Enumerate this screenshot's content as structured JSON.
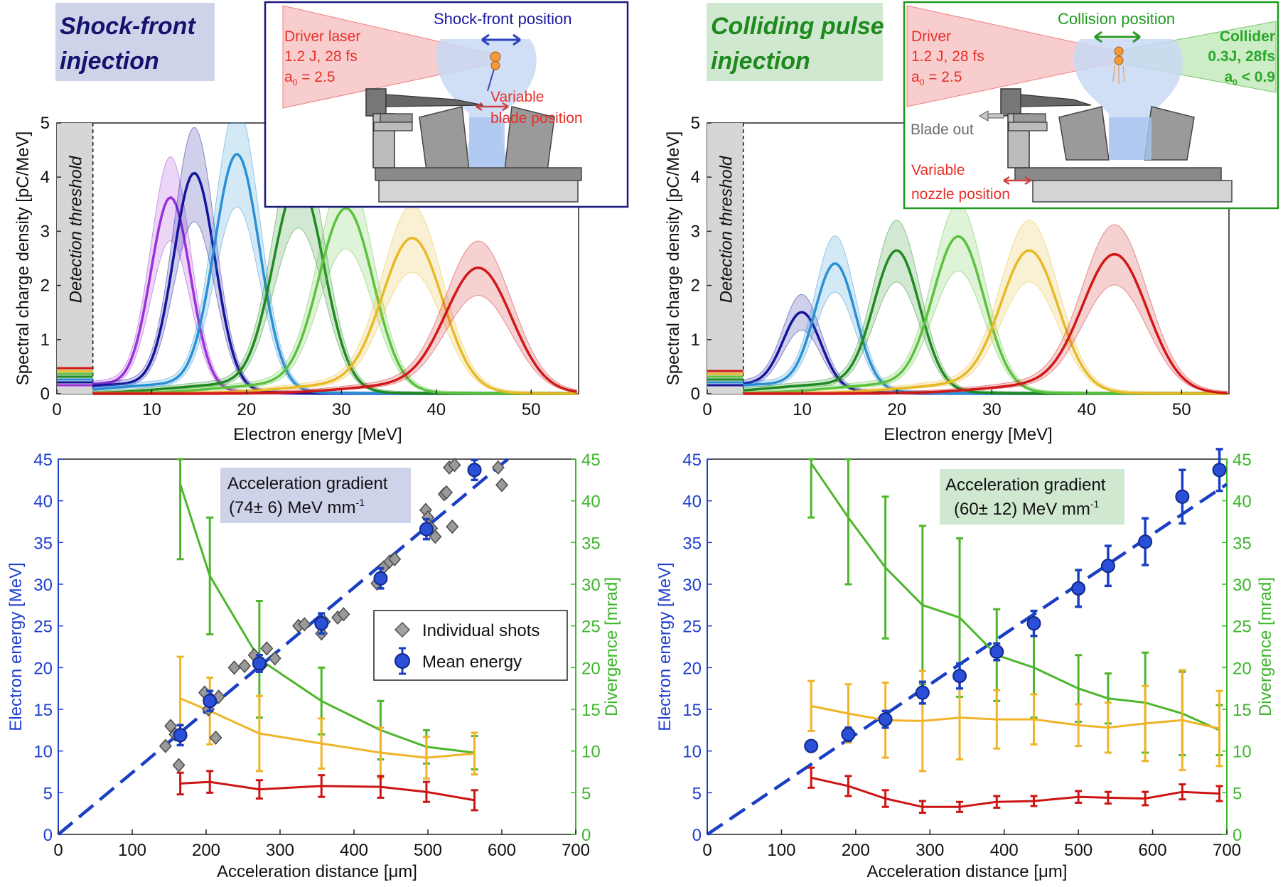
{
  "colors": {
    "axis_blue": "#1f3fd0",
    "axis_green": "#3cb62a",
    "mean_blue": "#1a3fc4",
    "driver_red": "#e8302a",
    "shock_navy": "#1a1a7a",
    "collide_green": "#1e9a1e",
    "energy_series": [
      "#9b30d9",
      "#14149c",
      "#2a8fd4",
      "#1f8a1f",
      "#5cc23c",
      "#e8b926",
      "#d01818"
    ]
  },
  "panels": {
    "shock": {
      "title_line1": "Shock-front",
      "title_line2": "injection",
      "title_bg": "#cfd3ea",
      "inset": {
        "driver_line1": "Driver laser",
        "driver_line2": "1.2 J, 28 fs",
        "driver_line3": "a",
        "driver_sub": "0",
        "driver_line3_rest": " = 2.5",
        "front_label": "Shock-front position",
        "blade_line1": "Variable",
        "blade_line2": "blade position"
      },
      "chart_data": {
        "type": "line",
        "title": "",
        "xlabel": "Electron energy [MeV]",
        "ylabel": "Spectral charge density [pC/MeV]",
        "xlim": [
          0,
          55
        ],
        "ylim": [
          0,
          5
        ],
        "xticks": [
          "0",
          "10",
          "20",
          "30",
          "40",
          "50"
        ],
        "yticks": [
          "0",
          "1",
          "2",
          "3",
          "4",
          "5"
        ],
        "threshold_label": "Detection threshold",
        "threshold_x": 3.8,
        "series_peaks": [
          {
            "center": 12.0,
            "peak": 3.5
          },
          {
            "center": 14.5,
            "peak": 3.95
          },
          {
            "center": 19.0,
            "peak": 4.3
          },
          {
            "center": 25.5,
            "peak": 3.8
          },
          {
            "center": 30.5,
            "peak": 3.3
          },
          {
            "center": 37.5,
            "peak": 2.75
          },
          {
            "center": 44.5,
            "peak": 2.2
          }
        ]
      },
      "gradient_chart": {
        "type": "scatter",
        "xlabel": "Acceleration distance [μm]",
        "ylabel_left": "Electron energy [MeV]",
        "ylabel_right": "Divergence  [mrad]",
        "xlim": [
          0,
          700
        ],
        "ylim": [
          0,
          45
        ],
        "xticks": [
          "0",
          "100",
          "200",
          "300",
          "400",
          "500",
          "600",
          "700"
        ],
        "yticks": [
          "0",
          "5",
          "10",
          "15",
          "20",
          "25",
          "30",
          "35",
          "40",
          "45"
        ],
        "gradient_title": "Acceleration gradient",
        "gradient_value": "(74± 6)  MeV mm",
        "gradient_unit_sup": "-1",
        "legend_shots": "Individual shots",
        "legend_mean": "Mean energy",
        "fit_slope": 0.074,
        "mean_energy": [
          {
            "x": 165,
            "y": 11.9,
            "err": 1.2
          },
          {
            "x": 205,
            "y": 16.0,
            "err": 1.2
          },
          {
            "x": 272,
            "y": 20.5,
            "err": 1.0
          },
          {
            "x": 356,
            "y": 25.3,
            "err": 1.2
          },
          {
            "x": 436,
            "y": 30.7,
            "err": 1.2
          },
          {
            "x": 498,
            "y": 36.6,
            "err": 1.2
          },
          {
            "x": 563,
            "y": 43.7,
            "err": 1.2
          }
        ],
        "individual_shots": [
          [
            145,
            10.6
          ],
          [
            152,
            13.0
          ],
          [
            158,
            12.0
          ],
          [
            163,
            8.3
          ],
          [
            198,
            17.0
          ],
          [
            203,
            15.0
          ],
          [
            207,
            16.2
          ],
          [
            213,
            11.6
          ],
          [
            217,
            16.5
          ],
          [
            238,
            20.0
          ],
          [
            252,
            20.2
          ],
          [
            265,
            21.5
          ],
          [
            275,
            20.3
          ],
          [
            282,
            22.3
          ],
          [
            293,
            21.1
          ],
          [
            325,
            25.0
          ],
          [
            333,
            25.2
          ],
          [
            356,
            24.1
          ],
          [
            360,
            25.5
          ],
          [
            378,
            26.0
          ],
          [
            386,
            26.4
          ],
          [
            431,
            30.1
          ],
          [
            440,
            32.0
          ],
          [
            448,
            32.7
          ],
          [
            455,
            33.0
          ],
          [
            497,
            38.9
          ],
          [
            500,
            38.0
          ],
          [
            505,
            36.7
          ],
          [
            510,
            35.7
          ],
          [
            522,
            40.8
          ],
          [
            525,
            41.0
          ],
          [
            529,
            44.0
          ],
          [
            533,
            36.9
          ],
          [
            536,
            44.3
          ],
          [
            595,
            44.0
          ],
          [
            600,
            41.9
          ]
        ],
        "divergence_green": [
          {
            "x": 165,
            "y": 42.0,
            "err": 9.0
          },
          {
            "x": 205,
            "y": 31.0,
            "err": 7.0
          },
          {
            "x": 272,
            "y": 21.0,
            "err": 7.0
          },
          {
            "x": 356,
            "y": 16.0,
            "err": 4.0
          },
          {
            "x": 436,
            "y": 12.5,
            "err": 3.5
          },
          {
            "x": 498,
            "y": 10.5,
            "err": 2.0
          },
          {
            "x": 563,
            "y": 9.8,
            "err": 2.0
          }
        ],
        "divergence_yellow": [
          {
            "x": 165,
            "y": 16.3,
            "err": 5.0
          },
          {
            "x": 205,
            "y": 14.8,
            "err": 4.0
          },
          {
            "x": 272,
            "y": 12.1,
            "err": 4.5
          },
          {
            "x": 356,
            "y": 10.9,
            "err": 3.0
          },
          {
            "x": 436,
            "y": 9.8,
            "err": 3.0
          },
          {
            "x": 498,
            "y": 9.2,
            "err": 2.5
          },
          {
            "x": 563,
            "y": 9.7,
            "err": 2.5
          }
        ],
        "divergence_red": [
          {
            "x": 165,
            "y": 6.1,
            "err": 1.3
          },
          {
            "x": 205,
            "y": 6.3,
            "err": 1.3
          },
          {
            "x": 272,
            "y": 5.4,
            "err": 1.1
          },
          {
            "x": 356,
            "y": 5.8,
            "err": 1.3
          },
          {
            "x": 436,
            "y": 5.7,
            "err": 1.3
          },
          {
            "x": 498,
            "y": 5.1,
            "err": 1.2
          },
          {
            "x": 563,
            "y": 4.1,
            "err": 1.2
          }
        ]
      }
    },
    "collide": {
      "title_line1": "Colliding pulse",
      "title_line2": "injection",
      "title_bg": "#cfe8cf",
      "inset": {
        "driver_line1": "Driver",
        "driver_line2": "1.2 J, 28 fs",
        "driver_line3": "a",
        "driver_sub": "0",
        "driver_line3_rest": " = 2.5",
        "collision_label": "Collision position",
        "collider_line1": "Collider",
        "collider_line2": "0.3J, 28fs",
        "collider_line3": "a",
        "collider_sub": "0",
        "collider_line3_rest": " < 0.9",
        "blade_out": "Blade out",
        "nozzle_line1": "Variable",
        "nozzle_line2": "nozzle position"
      },
      "chart_data": {
        "type": "line",
        "title": "",
        "xlabel": "Electron energy [MeV]",
        "ylabel": "Spectral charge density [pC/MeV]",
        "xlim": [
          0,
          55
        ],
        "ylim": [
          0,
          5
        ],
        "xticks": [
          "0",
          "10",
          "20",
          "30",
          "40",
          "50"
        ],
        "yticks": [
          "0",
          "1",
          "2",
          "3",
          "4",
          "5"
        ],
        "threshold_label": "Detection threshold",
        "threshold_x": 3.8,
        "series_peaks": [
          {
            "center": 10.0,
            "peak": 1.38
          },
          {
            "center": 13.5,
            "peak": 2.28
          },
          {
            "center": 20.0,
            "peak": 2.52
          },
          {
            "center": 26.5,
            "peak": 2.78
          },
          {
            "center": 34.0,
            "peak": 2.52
          },
          {
            "center": 43.0,
            "peak": 2.45
          }
        ]
      },
      "gradient_chart": {
        "type": "scatter",
        "xlabel": "Acceleration distance [μm]",
        "ylabel_left": "Electron energy [MeV]",
        "ylabel_right": "Divergence [mrad]",
        "xlim": [
          0,
          700
        ],
        "ylim": [
          0,
          45
        ],
        "xticks": [
          "0",
          "100",
          "200",
          "300",
          "400",
          "500",
          "600",
          "700"
        ],
        "yticks": [
          "0",
          "5",
          "10",
          "15",
          "20",
          "25",
          "30",
          "35",
          "40",
          "45"
        ],
        "gradient_title": "Acceleration gradient",
        "gradient_value": "(60± 12) MeV mm",
        "gradient_unit_sup": "-1",
        "fit_slope": 0.06,
        "mean_energy": [
          {
            "x": 140,
            "y": 10.6,
            "err": 0.6
          },
          {
            "x": 190,
            "y": 12.0,
            "err": 0.8
          },
          {
            "x": 240,
            "y": 13.8,
            "err": 1.0
          },
          {
            "x": 290,
            "y": 17.0,
            "err": 1.3
          },
          {
            "x": 340,
            "y": 19.0,
            "err": 1.5
          },
          {
            "x": 390,
            "y": 21.9,
            "err": 1.0
          },
          {
            "x": 440,
            "y": 25.3,
            "err": 1.5
          },
          {
            "x": 500,
            "y": 29.5,
            "err": 2.2
          },
          {
            "x": 540,
            "y": 32.2,
            "err": 2.4
          },
          {
            "x": 590,
            "y": 35.1,
            "err": 2.8
          },
          {
            "x": 640,
            "y": 40.5,
            "err": 3.2
          },
          {
            "x": 690,
            "y": 43.7,
            "err": 2.5
          }
        ],
        "divergence_green": [
          {
            "x": 140,
            "y": 44.5,
            "err": 6.5
          },
          {
            "x": 190,
            "y": 38.0,
            "err": 8.0
          },
          {
            "x": 240,
            "y": 32.0,
            "err": 8.5
          },
          {
            "x": 290,
            "y": 27.5,
            "err": 9.5
          },
          {
            "x": 340,
            "y": 26.0,
            "err": 9.5
          },
          {
            "x": 390,
            "y": 21.5,
            "err": 5.5
          },
          {
            "x": 440,
            "y": 20.0,
            "err": 6.0
          },
          {
            "x": 500,
            "y": 17.5,
            "err": 4.0
          },
          {
            "x": 540,
            "y": 16.3,
            "err": 3.0
          },
          {
            "x": 590,
            "y": 15.8,
            "err": 6.0
          },
          {
            "x": 640,
            "y": 14.5,
            "err": 5.0
          },
          {
            "x": 690,
            "y": 12.5,
            "err": 3.0
          }
        ],
        "divergence_yellow": [
          {
            "x": 140,
            "y": 15.4,
            "err": 3.0
          },
          {
            "x": 190,
            "y": 14.5,
            "err": 3.5
          },
          {
            "x": 240,
            "y": 13.7,
            "err": 4.5
          },
          {
            "x": 290,
            "y": 13.6,
            "err": 6.0
          },
          {
            "x": 340,
            "y": 14.0,
            "err": 5.0
          },
          {
            "x": 390,
            "y": 13.8,
            "err": 3.5
          },
          {
            "x": 440,
            "y": 13.8,
            "err": 3.0
          },
          {
            "x": 500,
            "y": 13.1,
            "err": 2.5
          },
          {
            "x": 540,
            "y": 12.8,
            "err": 3.0
          },
          {
            "x": 590,
            "y": 13.3,
            "err": 4.5
          },
          {
            "x": 640,
            "y": 13.7,
            "err": 6.0
          },
          {
            "x": 690,
            "y": 12.7,
            "err": 4.5
          }
        ],
        "divergence_red": [
          {
            "x": 140,
            "y": 6.8,
            "err": 1.2
          },
          {
            "x": 190,
            "y": 5.8,
            "err": 1.2
          },
          {
            "x": 240,
            "y": 4.3,
            "err": 1.0
          },
          {
            "x": 290,
            "y": 3.3,
            "err": 0.7
          },
          {
            "x": 340,
            "y": 3.3,
            "err": 0.6
          },
          {
            "x": 390,
            "y": 3.9,
            "err": 0.7
          },
          {
            "x": 440,
            "y": 4.0,
            "err": 0.6
          },
          {
            "x": 500,
            "y": 4.5,
            "err": 0.7
          },
          {
            "x": 540,
            "y": 4.4,
            "err": 0.7
          },
          {
            "x": 590,
            "y": 4.3,
            "err": 0.8
          },
          {
            "x": 640,
            "y": 5.1,
            "err": 0.9
          },
          {
            "x": 690,
            "y": 4.9,
            "err": 0.9
          }
        ]
      }
    }
  }
}
